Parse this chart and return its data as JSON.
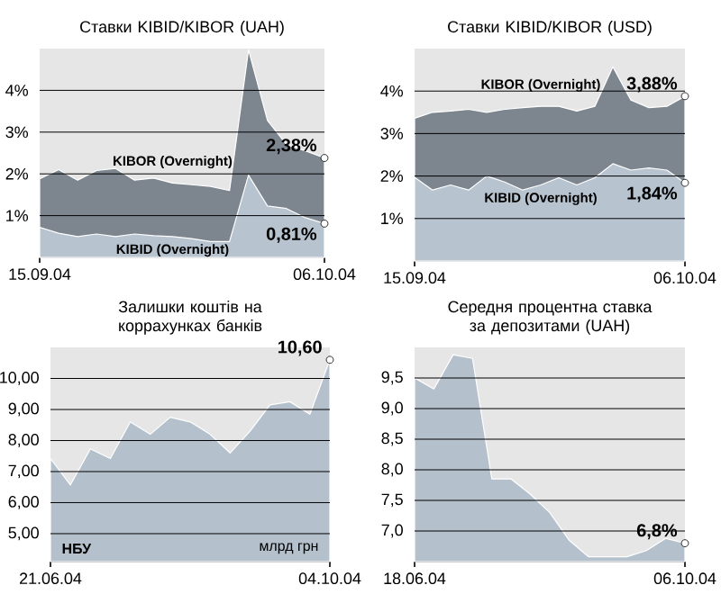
{
  "chart_data": [
    {
      "type": "area",
      "title": "Ставки KIBID/KIBOR (UAH)",
      "categories": [
        "15.09.04",
        null,
        null,
        null,
        null,
        null,
        null,
        null,
        null,
        null,
        null,
        null,
        null,
        null,
        null,
        "06.10.04"
      ],
      "ylim": [
        0,
        5
      ],
      "yticks": [
        {
          "value": 1,
          "label": "1%"
        },
        {
          "value": 2,
          "label": "2%"
        },
        {
          "value": 3,
          "label": "3%"
        },
        {
          "value": 4,
          "label": "4%"
        }
      ],
      "grid": "y",
      "series": [
        {
          "name": "KIBOR (Overnight)",
          "color": "#7d858f",
          "values": [
            1.88,
            2.1,
            1.85,
            2.08,
            2.13,
            1.85,
            1.9,
            1.78,
            1.74,
            1.7,
            1.6,
            4.97,
            3.28,
            2.7,
            2.55,
            2.38
          ],
          "value_labels": [
            null,
            null,
            null,
            null,
            null,
            null,
            null,
            null,
            null,
            null,
            null,
            null,
            null,
            null,
            null,
            "2,38%"
          ]
        },
        {
          "name": "KIBID (Overnight)",
          "color": "#b7c3cf",
          "values": [
            0.72,
            0.58,
            0.5,
            0.56,
            0.5,
            0.56,
            0.52,
            0.5,
            0.45,
            0.38,
            0.38,
            1.97,
            1.23,
            1.17,
            0.95,
            0.81
          ],
          "value_labels": [
            null,
            null,
            null,
            null,
            null,
            null,
            null,
            null,
            null,
            null,
            null,
            null,
            null,
            null,
            null,
            "0,81%"
          ]
        }
      ]
    },
    {
      "type": "area",
      "title": "Ставки KIBID/KIBOR (USD)",
      "categories": [
        "15.09.04",
        null,
        null,
        null,
        null,
        null,
        null,
        null,
        null,
        null,
        null,
        null,
        null,
        null,
        null,
        "06.10.04"
      ],
      "ylim": [
        0,
        5
      ],
      "yticks": [
        {
          "value": 1,
          "label": "1%"
        },
        {
          "value": 2,
          "label": "2%"
        },
        {
          "value": 3,
          "label": "3%"
        },
        {
          "value": 4,
          "label": "4%"
        }
      ],
      "grid": "y",
      "series": [
        {
          "name": "KIBOR (Overnight)",
          "color": "#7d858f",
          "values": [
            3.36,
            3.5,
            3.53,
            3.57,
            3.5,
            3.57,
            3.61,
            3.64,
            3.64,
            3.53,
            3.64,
            4.57,
            3.79,
            3.61,
            3.64,
            3.88
          ],
          "value_labels": [
            null,
            null,
            null,
            null,
            null,
            null,
            null,
            null,
            null,
            null,
            null,
            null,
            null,
            null,
            null,
            "3,88%"
          ]
        },
        {
          "name": "KIBID (Overnight)",
          "color": "#b7c3cf",
          "values": [
            1.97,
            1.67,
            1.79,
            1.67,
            2.0,
            1.86,
            1.67,
            1.79,
            1.96,
            1.79,
            1.96,
            2.29,
            2.14,
            2.19,
            2.14,
            1.84
          ],
          "value_labels": [
            null,
            null,
            null,
            null,
            null,
            null,
            null,
            null,
            null,
            null,
            null,
            null,
            null,
            null,
            null,
            "1,84%"
          ]
        }
      ]
    },
    {
      "type": "area",
      "title": "Залишки коштів на коррахунках банків",
      "categories": [
        "21.06.04",
        null,
        null,
        null,
        null,
        null,
        null,
        null,
        null,
        null,
        null,
        null,
        null,
        null,
        "04.10.04"
      ],
      "ylim": [
        4.1,
        11
      ],
      "yticks": [
        {
          "value": 5,
          "label": "5,00"
        },
        {
          "value": 6,
          "label": "6,00"
        },
        {
          "value": 7,
          "label": "7,00"
        },
        {
          "value": 8,
          "label": "8,00"
        },
        {
          "value": 9,
          "label": "9,00"
        },
        {
          "value": 10,
          "label": "10,00"
        }
      ],
      "grid": "y",
      "annotations": [
        "НБУ",
        "млрд грн"
      ],
      "series": [
        {
          "color": "#b4c0cc",
          "values": [
            7.42,
            6.57,
            7.73,
            7.42,
            8.6,
            8.2,
            8.75,
            8.6,
            8.2,
            7.6,
            8.3,
            9.15,
            9.25,
            8.85,
            10.6
          ],
          "value_labels": [
            null,
            null,
            null,
            null,
            null,
            null,
            null,
            null,
            null,
            null,
            null,
            null,
            null,
            null,
            "10,60"
          ]
        }
      ]
    },
    {
      "type": "area",
      "title": "Середня процентна ставка за депозитами (UAH)",
      "categories": [
        "18.06.04",
        null,
        null,
        null,
        null,
        null,
        null,
        null,
        null,
        null,
        null,
        null,
        null,
        null,
        "06.10.04"
      ],
      "ylim": [
        6.5,
        10
      ],
      "yticks": [
        {
          "value": 7,
          "label": "7,0"
        },
        {
          "value": 7.5,
          "label": "7,5"
        },
        {
          "value": 8,
          "label": "8,0"
        },
        {
          "value": 8.5,
          "label": "8,5"
        },
        {
          "value": 9,
          "label": "9,0"
        },
        {
          "value": 9.5,
          "label": "9,5"
        }
      ],
      "grid": "y",
      "series": [
        {
          "color": "#b4c0cc",
          "values": [
            9.5,
            9.32,
            9.88,
            9.82,
            7.85,
            7.85,
            7.6,
            7.3,
            6.85,
            6.58,
            6.58,
            6.58,
            6.68,
            6.88,
            6.8
          ],
          "value_labels": [
            null,
            null,
            null,
            null,
            null,
            null,
            null,
            null,
            null,
            null,
            null,
            null,
            null,
            null,
            "6,8%"
          ]
        }
      ]
    }
  ]
}
